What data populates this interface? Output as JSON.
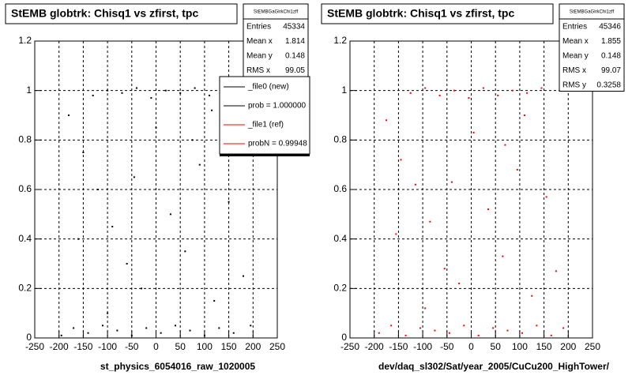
{
  "chart_data": [
    {
      "type": "scatter",
      "title": "StEMB globtrk: Chisq1 vs zfirst, tpc",
      "color": "#000000",
      "x_label": "st_physics_6054016_raw_1020005",
      "stats_name": "StEMBGaGlrkChi1zff",
      "stats": [
        {
          "label": "Entries",
          "value": 45334
        },
        {
          "label": "Mean x",
          "value": 1.814
        },
        {
          "label": "Mean y",
          "value": 0.148
        },
        {
          "label": "RMS x",
          "value": 99.05
        }
      ],
      "legend": [
        {
          "name": "_file0 (new)",
          "color": "#000000"
        },
        {
          "name": "prob = 1.000000",
          "color": "#000000"
        },
        {
          "name": "_file1 (ref)",
          "color": "#ff0000"
        },
        {
          "name": "probN = 0.99948",
          "color": "#ff0000"
        }
      ],
      "xlim": [
        -250,
        250
      ],
      "ylim": [
        0,
        1.2
      ],
      "xticks": [
        -250,
        -200,
        -150,
        -100,
        -50,
        0,
        50,
        100,
        150,
        200,
        250
      ],
      "yticks": [
        0,
        0.2,
        0.4,
        0.6,
        0.8,
        1,
        1.2
      ],
      "grid": true,
      "x": [
        -195,
        -170,
        -140,
        -110,
        -80,
        -50,
        -20,
        10,
        40,
        70,
        100,
        130,
        160,
        195,
        -130,
        -100,
        -70,
        -40,
        -10,
        20,
        50,
        80,
        110,
        140,
        -180,
        -150,
        -120,
        -90,
        -60,
        -30,
        0,
        30,
        60,
        90,
        120,
        150,
        180,
        -160,
        -45,
        75,
        -100,
        115
      ],
      "y": [
        0.01,
        0.04,
        0.02,
        0.05,
        0.03,
        0.01,
        0.04,
        0.02,
        0.05,
        0.03,
        0.01,
        0.04,
        0.02,
        0.05,
        0.98,
        1.0,
        0.99,
        1.01,
        0.97,
        1.0,
        0.99,
        1.01,
        0.98,
        1.0,
        0.9,
        0.75,
        0.6,
        0.45,
        0.3,
        0.2,
        0.85,
        0.5,
        0.35,
        0.7,
        0.15,
        0.55,
        0.25,
        0.4,
        0.65,
        0.8,
        0.1,
        0.92
      ]
    },
    {
      "type": "scatter",
      "title": "StEMB globtrk: Chisq1 vs zfirst, tpc",
      "color": "#ff0000",
      "x_label": "dev/daq_sl302/Sat/year_2005/CuCu200_HighTower/",
      "stats_name": "StEMBGaGlrkChi1zff",
      "stats": [
        {
          "label": "Entries",
          "value": 45346
        },
        {
          "label": "Mean x",
          "value": 1.855
        },
        {
          "label": "Mean y",
          "value": 0.148
        },
        {
          "label": "RMS x",
          "value": 99.07
        },
        {
          "label": "RMS y",
          "value": 0.3258
        }
      ],
      "xlim": [
        -250,
        250
      ],
      "ylim": [
        0,
        1.2
      ],
      "xticks": [
        -250,
        -200,
        -150,
        -100,
        -50,
        0,
        50,
        100,
        150,
        200,
        250
      ],
      "yticks": [
        0,
        0.2,
        0.4,
        0.6,
        0.8,
        1,
        1.2
      ],
      "grid": true,
      "x": [
        -190,
        -165,
        -135,
        -105,
        -75,
        -45,
        -15,
        15,
        45,
        75,
        105,
        135,
        165,
        190,
        -125,
        -95,
        -65,
        -35,
        -5,
        25,
        55,
        85,
        115,
        145,
        -175,
        -145,
        -115,
        -85,
        -55,
        -25,
        5,
        35,
        65,
        95,
        125,
        155,
        175,
        -155,
        -40,
        70,
        -95,
        110
      ],
      "y": [
        0.02,
        0.05,
        0.01,
        0.04,
        0.03,
        0.02,
        0.05,
        0.01,
        0.04,
        0.03,
        0.02,
        0.05,
        0.01,
        0.04,
        0.99,
        1.01,
        0.98,
        1.0,
        0.97,
        1.01,
        0.98,
        1.0,
        0.99,
        1.01,
        0.88,
        0.72,
        0.62,
        0.47,
        0.28,
        0.22,
        0.83,
        0.52,
        0.33,
        0.68,
        0.17,
        0.57,
        0.27,
        0.42,
        0.63,
        0.78,
        0.12,
        0.9
      ]
    }
  ]
}
